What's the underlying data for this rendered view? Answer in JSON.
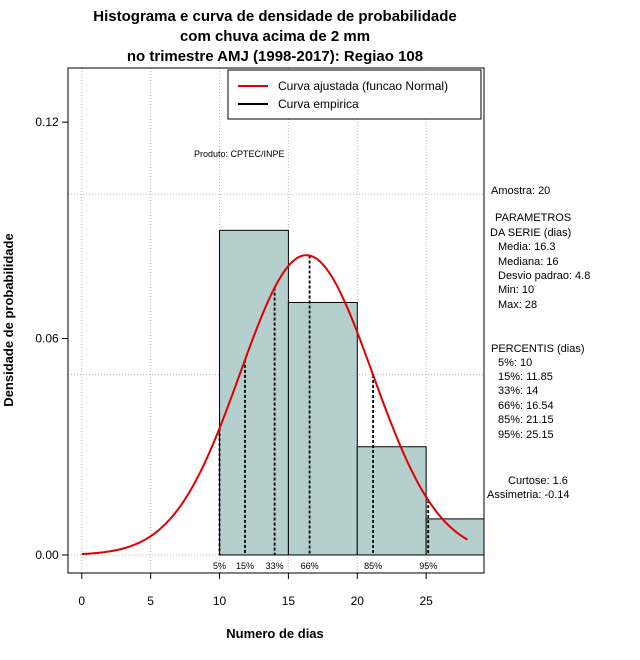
{
  "chart_data": {
    "type": "histogram",
    "title_lines": [
      "Histograma e curva de densidade de probabilidade",
      "com chuva acima de 2 mm",
      "no trimestre AMJ (1998-2017): Regiao 108"
    ],
    "xlabel": "Numero de dias",
    "ylabel": "Densidade de probabilidade",
    "xlim": [
      -1,
      29.2
    ],
    "ylim": [
      -0.005,
      0.135
    ],
    "x_ticks": [
      0,
      5,
      10,
      15,
      20,
      25
    ],
    "y_ticks": [
      0.0,
      0.06,
      0.12
    ],
    "y_tick_labels": [
      "0.00",
      "0.06",
      "0.12"
    ],
    "grid_x": [
      0,
      5,
      10,
      15,
      20,
      25
    ],
    "grid_y": [
      0.0,
      0.05,
      0.1
    ],
    "bins": [
      {
        "x0": 10,
        "x1": 15,
        "density": 0.09
      },
      {
        "x0": 15,
        "x1": 20,
        "density": 0.07
      },
      {
        "x0": 20,
        "x1": 25,
        "density": 0.03
      },
      {
        "x0": 25,
        "x1": 30,
        "density": 0.01
      }
    ],
    "normal_curve": {
      "mean": 16.3,
      "sd": 4.8,
      "from": 0,
      "to": 28,
      "color": "#e00000"
    },
    "bar_color": "#b5cece",
    "percentile_lines": [
      {
        "label": "5%",
        "x": 10
      },
      {
        "label": "15%",
        "x": 11.85
      },
      {
        "label": "33%",
        "x": 14
      },
      {
        "label": "66%",
        "x": 16.54
      },
      {
        "label": "85%",
        "x": 21.15
      },
      {
        "label": "95%",
        "x": 25.15
      }
    ],
    "legend": [
      {
        "label": "Curva ajustada (funcao Normal)",
        "color": "#e00000"
      },
      {
        "label": "Curva empirica",
        "color": "#000000"
      }
    ],
    "product_label": "Produto: CPTEC/INPE",
    "sample_text": "Amostra: 20",
    "params_heading": [
      "PARAMETROS",
      "DA SERIE (dias)"
    ],
    "params": [
      "Media: 16.3",
      "Mediana: 16",
      "Desvio padrao: 4.8",
      "Min: 10",
      "Max: 28"
    ],
    "percentis_heading": "PERCENTIS (dias)",
    "percentis": [
      "5%: 10",
      "15%: 11.85",
      "33%: 14",
      "66%: 16.54",
      "85%: 21.15",
      "95%: 25.15"
    ],
    "kurtosis_text": "Curtose: 1.6",
    "skewness_text": "Assimetria: -0.14"
  }
}
